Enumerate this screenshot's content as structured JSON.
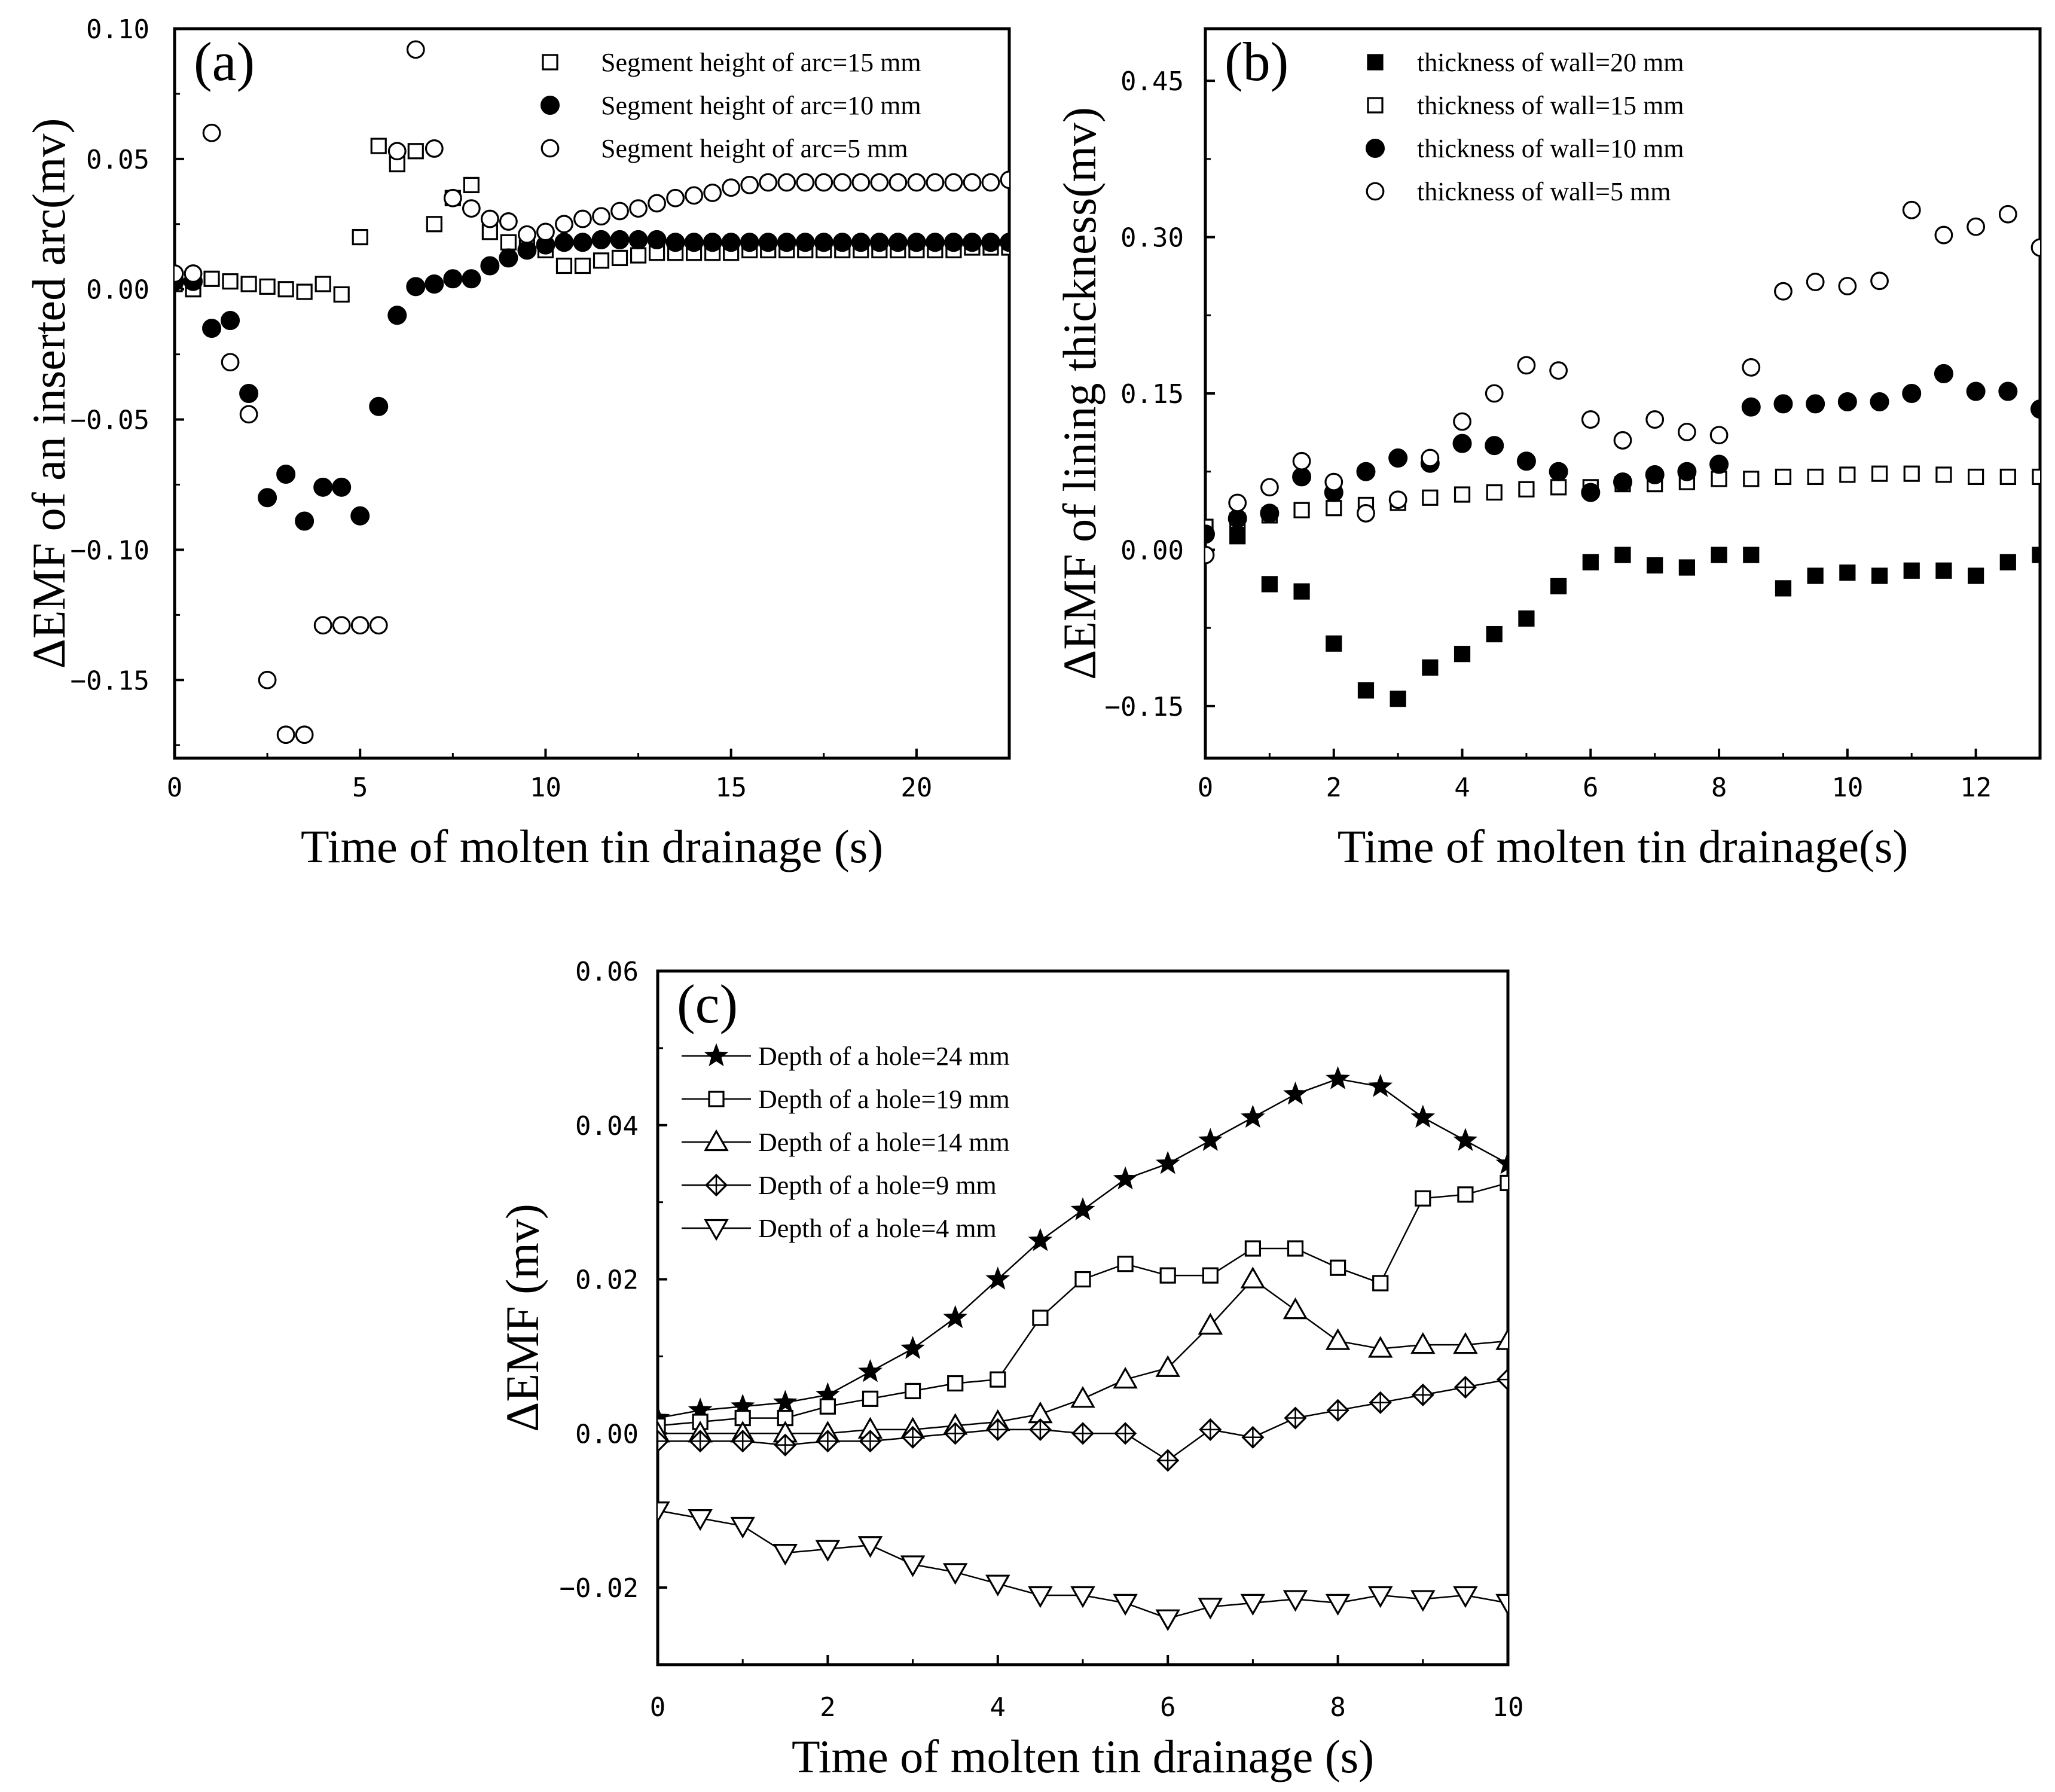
{
  "colors": {
    "ink": "#000000",
    "paper": "#ffffff"
  },
  "chart_data": [
    {
      "id": "a",
      "type": "scatter",
      "panel_label": "(a)",
      "xlabel": "Time of molten tin drainage (s)",
      "ylabel": "ΔEMF of an inserted arc(mv)",
      "xlim": [
        0,
        22.5
      ],
      "ylim": [
        -0.18,
        0.1
      ],
      "xticks": [
        0,
        5,
        10,
        15,
        20
      ],
      "xtick_labels": [
        "0",
        "5",
        "10",
        "15",
        "20"
      ],
      "yticks": [
        0.1,
        0.05,
        0.0,
        -0.05,
        -0.1,
        -0.15
      ],
      "ytick_labels": [
        "0.10",
        "0.05",
        "0.00",
        "−0.05",
        "−0.10",
        "−0.15"
      ],
      "legend_position": "top-right",
      "series": [
        {
          "name": "Segment height of arc=15 mm",
          "marker": "square-open",
          "x": [
            0,
            0.5,
            1,
            1.5,
            2,
            2.5,
            3,
            3.5,
            4,
            4.5,
            5,
            5.5,
            6,
            6.5,
            7,
            7.5,
            8,
            8.5,
            9,
            9.5,
            10,
            10.5,
            11,
            11.5,
            12,
            12.5,
            13,
            13.5,
            14,
            14.5,
            15,
            15.5,
            16,
            16.5,
            17,
            17.5,
            18,
            18.5,
            19,
            19.5,
            20,
            20.5,
            21,
            21.5,
            22,
            22.5
          ],
          "y": [
            0.002,
            0.0,
            0.004,
            0.003,
            0.002,
            0.001,
            0.0,
            -0.001,
            0.002,
            -0.002,
            0.02,
            0.055,
            0.048,
            0.053,
            0.025,
            0.035,
            0.04,
            0.022,
            0.018,
            0.016,
            0.015,
            0.009,
            0.009,
            0.011,
            0.012,
            0.013,
            0.014,
            0.014,
            0.014,
            0.014,
            0.014,
            0.015,
            0.015,
            0.015,
            0.015,
            0.015,
            0.015,
            0.015,
            0.015,
            0.015,
            0.015,
            0.015,
            0.015,
            0.016,
            0.016,
            0.016
          ]
        },
        {
          "name": "Segment height of arc=10 mm",
          "marker": "circle-filled",
          "x": [
            0,
            0.5,
            1,
            1.5,
            2,
            2.5,
            3,
            3.5,
            4,
            4.5,
            5,
            5.5,
            6,
            6.5,
            7,
            7.5,
            8,
            8.5,
            9,
            9.5,
            10,
            10.5,
            11,
            11.5,
            12,
            12.5,
            13,
            13.5,
            14,
            14.5,
            15,
            15.5,
            16,
            16.5,
            17,
            17.5,
            18,
            18.5,
            19,
            19.5,
            20,
            20.5,
            21,
            21.5,
            22,
            22.5
          ],
          "y": [
            0.003,
            0.003,
            -0.015,
            -0.012,
            -0.04,
            -0.08,
            -0.071,
            -0.089,
            -0.076,
            -0.076,
            -0.087,
            -0.045,
            -0.01,
            0.001,
            0.002,
            0.004,
            0.004,
            0.009,
            0.012,
            0.015,
            0.017,
            0.018,
            0.018,
            0.019,
            0.019,
            0.019,
            0.019,
            0.018,
            0.018,
            0.018,
            0.018,
            0.018,
            0.018,
            0.018,
            0.018,
            0.018,
            0.018,
            0.018,
            0.018,
            0.018,
            0.018,
            0.018,
            0.018,
            0.018,
            0.018,
            0.018
          ]
        },
        {
          "name": "Segment height of arc=5 mm",
          "marker": "circle-open",
          "x": [
            0,
            0.5,
            1,
            1.5,
            2,
            2.5,
            3,
            3.5,
            4,
            4.5,
            5,
            5.5,
            6,
            6.5,
            7,
            7.5,
            8,
            8.5,
            9,
            9.5,
            10,
            10.5,
            11,
            11.5,
            12,
            12.5,
            13,
            13.5,
            14,
            14.5,
            15,
            15.5,
            16,
            16.5,
            17,
            17.5,
            18,
            18.5,
            19,
            19.5,
            20,
            20.5,
            21,
            21.5,
            22,
            22.5
          ],
          "y": [
            0.006,
            0.006,
            0.06,
            -0.028,
            -0.048,
            -0.15,
            -0.171,
            -0.171,
            -0.129,
            -0.129,
            -0.129,
            -0.129,
            0.053,
            0.092,
            0.054,
            0.035,
            0.031,
            0.027,
            0.026,
            0.021,
            0.022,
            0.025,
            0.027,
            0.028,
            0.03,
            0.031,
            0.033,
            0.035,
            0.036,
            0.037,
            0.039,
            0.04,
            0.041,
            0.041,
            0.041,
            0.041,
            0.041,
            0.041,
            0.041,
            0.041,
            0.041,
            0.041,
            0.041,
            0.041,
            0.041,
            0.042
          ]
        }
      ]
    },
    {
      "id": "b",
      "type": "scatter",
      "panel_label": "(b)",
      "xlabel": "Time of molten tin drainage(s)",
      "ylabel": "ΔEMF of lining thickness(mv)",
      "xlim": [
        0,
        13
      ],
      "ylim": [
        -0.2,
        0.5
      ],
      "xticks": [
        0,
        2,
        4,
        6,
        8,
        10,
        12
      ],
      "xtick_labels": [
        "0",
        "2",
        "4",
        "6",
        "8",
        "10",
        "12"
      ],
      "yticks": [
        0.45,
        0.3,
        0.15,
        0.0,
        -0.15
      ],
      "ytick_labels": [
        "0.45",
        "0.30",
        "0.15",
        "0.00",
        "−0.15"
      ],
      "legend_position": "top-left",
      "series": [
        {
          "name": "thickness of wall=20 mm",
          "marker": "square-filled",
          "x": [
            0,
            0.5,
            1,
            1.5,
            2,
            2.5,
            3,
            3.5,
            4,
            4.5,
            5,
            5.5,
            6,
            6.5,
            7,
            7.5,
            8,
            8.5,
            9,
            9.5,
            10,
            10.5,
            11,
            11.5,
            12,
            12.5,
            13
          ],
          "y": [
            0.02,
            0.013,
            -0.033,
            -0.04,
            -0.09,
            -0.135,
            -0.143,
            -0.113,
            -0.1,
            -0.081,
            -0.066,
            -0.035,
            -0.012,
            -0.005,
            -0.015,
            -0.017,
            -0.005,
            -0.005,
            -0.037,
            -0.025,
            -0.022,
            -0.025,
            -0.02,
            -0.02,
            -0.025,
            -0.012,
            -0.005
          ]
        },
        {
          "name": "thickness of wall=15 mm",
          "marker": "square-open",
          "x": [
            0,
            0.5,
            1,
            1.5,
            2,
            2.5,
            3,
            3.5,
            4,
            4.5,
            5,
            5.5,
            6,
            6.5,
            7,
            7.5,
            8,
            8.5,
            9,
            9.5,
            10,
            10.5,
            11,
            11.5,
            12,
            12.5,
            13
          ],
          "y": [
            0.022,
            0.028,
            0.033,
            0.038,
            0.04,
            0.043,
            0.045,
            0.05,
            0.053,
            0.055,
            0.058,
            0.06,
            0.06,
            0.063,
            0.063,
            0.065,
            0.068,
            0.068,
            0.07,
            0.07,
            0.072,
            0.073,
            0.073,
            0.072,
            0.07,
            0.07,
            0.07
          ]
        },
        {
          "name": "thickness of wall=10 mm",
          "marker": "circle-filled",
          "x": [
            0,
            0.5,
            1,
            1.5,
            2,
            2.5,
            3,
            3.5,
            4,
            4.5,
            5,
            5.5,
            6,
            6.5,
            7,
            7.5,
            8,
            8.5,
            9,
            9.5,
            10,
            10.5,
            11,
            11.5,
            12,
            12.5,
            13
          ],
          "y": [
            0.015,
            0.03,
            0.035,
            0.07,
            0.055,
            0.075,
            0.088,
            0.083,
            0.102,
            0.1,
            0.085,
            0.075,
            0.055,
            0.065,
            0.072,
            0.075,
            0.082,
            0.137,
            0.14,
            0.14,
            0.142,
            0.142,
            0.15,
            0.169,
            0.152,
            0.152,
            0.135
          ]
        },
        {
          "name": "thickness of wall=5 mm",
          "marker": "circle-open",
          "x": [
            0,
            0.5,
            1,
            1.5,
            2,
            2.5,
            3,
            3.5,
            4,
            4.5,
            5,
            5.5,
            6,
            6.5,
            7,
            7.5,
            8,
            8.5,
            9,
            9.5,
            10,
            10.5,
            11,
            11.5,
            12,
            12.5,
            13
          ],
          "y": [
            -0.005,
            0.045,
            0.06,
            0.085,
            0.065,
            0.035,
            0.048,
            0.088,
            0.123,
            0.15,
            0.177,
            0.172,
            0.125,
            0.105,
            0.125,
            0.113,
            0.11,
            0.175,
            0.248,
            0.257,
            0.253,
            0.258,
            0.326,
            0.302,
            0.31,
            0.322,
            0.29
          ]
        }
      ]
    },
    {
      "id": "c",
      "type": "line",
      "panel_label": "(c)",
      "xlabel": "Time of molten tin drainage (s)",
      "ylabel": "ΔEMF (mv)",
      "xlim": [
        0,
        10
      ],
      "ylim": [
        -0.03,
        0.06
      ],
      "xticks": [
        0,
        2,
        4,
        6,
        8,
        10
      ],
      "xtick_labels": [
        "0",
        "2",
        "4",
        "6",
        "8",
        "10"
      ],
      "yticks": [
        0.06,
        0.04,
        0.02,
        0.0,
        -0.02
      ],
      "ytick_labels": [
        "0.06",
        "0.04",
        "0.02",
        "0.00",
        "−0.02"
      ],
      "legend_position": "top-left",
      "series": [
        {
          "name": "Depth of a hole=24 mm",
          "marker": "star-filled",
          "x": [
            0,
            0.5,
            1,
            1.5,
            2,
            2.5,
            3,
            3.5,
            4,
            4.5,
            5,
            5.5,
            6,
            6.5,
            7,
            7.5,
            8,
            8.5,
            9,
            9.5,
            10
          ],
          "y": [
            0.002,
            0.003,
            0.0035,
            0.004,
            0.005,
            0.008,
            0.011,
            0.015,
            0.02,
            0.025,
            0.029,
            0.033,
            0.035,
            0.038,
            0.041,
            0.044,
            0.046,
            0.045,
            0.041,
            0.038,
            0.035
          ]
        },
        {
          "name": "Depth of a hole=19 mm",
          "marker": "square-open",
          "x": [
            0,
            0.5,
            1,
            1.5,
            2,
            2.5,
            3,
            3.5,
            4,
            4.5,
            5,
            5.5,
            6,
            6.5,
            7,
            7.5,
            8,
            8.5,
            9,
            9.5,
            10
          ],
          "y": [
            0.001,
            0.0015,
            0.002,
            0.002,
            0.0035,
            0.0045,
            0.0055,
            0.0065,
            0.007,
            0.015,
            0.02,
            0.022,
            0.0205,
            0.0205,
            0.024,
            0.024,
            0.0215,
            0.0195,
            0.0305,
            0.031,
            0.0325
          ]
        },
        {
          "name": "Depth of a hole=14 mm",
          "marker": "triangle-up-open",
          "x": [
            0,
            0.5,
            1,
            1.5,
            2,
            2.5,
            3,
            3.5,
            4,
            4.5,
            5,
            5.5,
            6,
            6.5,
            7,
            7.5,
            8,
            8.5,
            9,
            9.5,
            10
          ],
          "y": [
            0.0,
            0.0,
            0.0,
            0.0,
            0.0,
            0.0005,
            0.0005,
            0.001,
            0.0015,
            0.0025,
            0.0045,
            0.007,
            0.0085,
            0.014,
            0.02,
            0.016,
            0.012,
            0.011,
            0.0115,
            0.0115,
            0.012
          ]
        },
        {
          "name": "Depth of a hole=9 mm",
          "marker": "diamond-cross",
          "x": [
            0,
            0.5,
            1,
            1.5,
            2,
            2.5,
            3,
            3.5,
            4,
            4.5,
            5,
            5.5,
            6,
            6.5,
            7,
            7.5,
            8,
            8.5,
            9,
            9.5,
            10
          ],
          "y": [
            -0.001,
            -0.001,
            -0.001,
            -0.0015,
            -0.001,
            -0.001,
            -0.0005,
            0.0,
            0.0005,
            0.0005,
            0.0,
            0.0,
            -0.0035,
            0.0005,
            -0.0005,
            0.002,
            0.003,
            0.004,
            0.005,
            0.006,
            0.007
          ]
        },
        {
          "name": "Depth of a hole=4 mm",
          "marker": "triangle-down-open",
          "x": [
            0,
            0.5,
            1,
            1.5,
            2,
            2.5,
            3,
            3.5,
            4,
            4.5,
            5,
            5.5,
            6,
            6.5,
            7,
            7.5,
            8,
            8.5,
            9,
            9.5,
            10
          ],
          "y": [
            -0.01,
            -0.011,
            -0.012,
            -0.0155,
            -0.015,
            -0.0145,
            -0.017,
            -0.018,
            -0.0195,
            -0.021,
            -0.021,
            -0.022,
            -0.024,
            -0.0225,
            -0.022,
            -0.0215,
            -0.022,
            -0.021,
            -0.0215,
            -0.021,
            -0.022
          ]
        }
      ]
    }
  ]
}
